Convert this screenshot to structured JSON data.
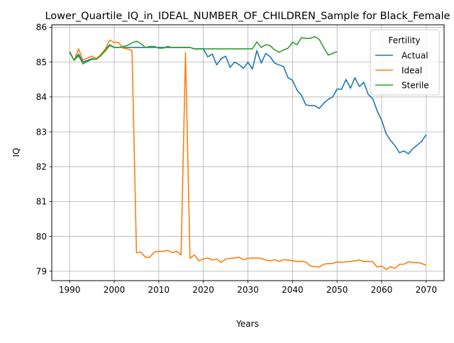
{
  "chart_data": {
    "type": "line",
    "title": "Lower_Quartile_IQ_in_IDEAL_NUMBER_OF_CHILDREN_Sample for Black_Female",
    "xlabel": "Years",
    "ylabel": "IQ",
    "xlim": [
      1986,
      2074
    ],
    "ylim": [
      78.73,
      86.07
    ],
    "xticks": [
      1990,
      2000,
      2010,
      2020,
      2030,
      2040,
      2050,
      2060,
      2070
    ],
    "yticks": [
      79,
      80,
      81,
      82,
      83,
      84,
      85,
      86
    ],
    "grid": true,
    "legend": {
      "title": "Fertility",
      "placement": "upper right"
    },
    "series": [
      {
        "name": "Actual",
        "color": "#1f77b4",
        "x": [
          1990,
          1991,
          1992,
          1993,
          1994,
          1995,
          1996,
          1997,
          1998,
          1999,
          2000,
          2001,
          2002,
          2003,
          2004,
          2005,
          2006,
          2007,
          2008,
          2009,
          2010,
          2011,
          2012,
          2013,
          2014,
          2015,
          2016,
          2017,
          2018,
          2019,
          2020,
          2021,
          2022,
          2023,
          2024,
          2025,
          2026,
          2027,
          2028,
          2029,
          2030,
          2031,
          2032,
          2033,
          2034,
          2035,
          2036,
          2037,
          2038,
          2039,
          2040,
          2041,
          2042,
          2043,
          2044,
          2045,
          2046,
          2047,
          2048,
          2049,
          2050,
          2051,
          2052,
          2053,
          2054,
          2055,
          2056,
          2057,
          2058,
          2059,
          2060,
          2061,
          2062,
          2063,
          2064,
          2065,
          2066,
          2067,
          2068,
          2069,
          2070
        ],
        "y": [
          85.28,
          85.06,
          85.23,
          85.0,
          85.05,
          85.1,
          85.08,
          85.2,
          85.35,
          85.5,
          85.42,
          85.42,
          85.42,
          85.42,
          85.42,
          85.42,
          85.42,
          85.42,
          85.42,
          85.42,
          85.42,
          85.42,
          85.42,
          85.42,
          85.42,
          85.42,
          85.42,
          85.42,
          85.38,
          85.38,
          85.38,
          85.15,
          85.23,
          84.92,
          85.1,
          85.17,
          84.85,
          85.0,
          84.93,
          84.82,
          85.0,
          84.8,
          85.33,
          84.97,
          85.25,
          85.15,
          84.97,
          84.92,
          84.87,
          84.55,
          84.48,
          84.2,
          84.05,
          83.77,
          83.75,
          83.75,
          83.67,
          83.82,
          83.93,
          84.0,
          84.23,
          84.22,
          84.5,
          84.25,
          84.55,
          84.3,
          84.42,
          84.07,
          83.95,
          83.6,
          83.33,
          82.95,
          82.75,
          82.6,
          82.4,
          82.45,
          82.37,
          82.52,
          82.62,
          82.73,
          82.92
        ]
      },
      {
        "name": "Ideal",
        "color": "#ff7f0e",
        "x": [
          1990,
          1991,
          1992,
          1993,
          1994,
          1995,
          1996,
          1997,
          1998,
          1999,
          2000,
          2001,
          2002,
          2003,
          2004,
          2005,
          2006,
          2007,
          2008,
          2009,
          2010,
          2011,
          2012,
          2013,
          2014,
          2015,
          2016,
          2017,
          2018,
          2019,
          2020,
          2021,
          2022,
          2023,
          2024,
          2025,
          2026,
          2027,
          2028,
          2029,
          2030,
          2031,
          2032,
          2033,
          2034,
          2035,
          2036,
          2037,
          2038,
          2039,
          2040,
          2041,
          2042,
          2043,
          2044,
          2045,
          2046,
          2047,
          2048,
          2049,
          2050,
          2051,
          2052,
          2053,
          2054,
          2055,
          2056,
          2057,
          2058,
          2059,
          2060,
          2061,
          2062,
          2063,
          2064,
          2065,
          2066,
          2067,
          2068,
          2069,
          2070
        ],
        "y": [
          85.3,
          85.05,
          85.38,
          85.05,
          85.12,
          85.17,
          85.1,
          85.22,
          85.38,
          85.63,
          85.56,
          85.56,
          85.4,
          85.38,
          85.33,
          79.53,
          79.55,
          79.4,
          79.4,
          79.55,
          79.57,
          79.57,
          79.6,
          79.53,
          79.57,
          79.47,
          85.27,
          79.37,
          79.47,
          79.3,
          79.35,
          79.38,
          79.32,
          79.35,
          79.25,
          79.35,
          79.37,
          79.38,
          79.4,
          79.33,
          79.37,
          79.38,
          79.38,
          79.37,
          79.32,
          79.3,
          79.33,
          79.28,
          79.33,
          79.32,
          79.3,
          79.28,
          79.28,
          79.27,
          79.15,
          79.13,
          79.12,
          79.2,
          79.22,
          79.22,
          79.27,
          79.25,
          79.27,
          79.28,
          79.3,
          79.32,
          79.28,
          79.28,
          79.27,
          79.12,
          79.15,
          79.05,
          79.13,
          79.08,
          79.2,
          79.2,
          79.27,
          79.25,
          79.25,
          79.22,
          79.17
        ]
      },
      {
        "name": "Sterile",
        "color": "#2ca02c",
        "x": [
          1990,
          1991,
          1992,
          1993,
          1994,
          1995,
          1996,
          1997,
          1998,
          1999,
          2000,
          2001,
          2002,
          2003,
          2004,
          2005,
          2006,
          2007,
          2008,
          2009,
          2010,
          2011,
          2012,
          2013,
          2014,
          2015,
          2016,
          2017,
          2018,
          2019,
          2020,
          2021,
          2022,
          2023,
          2024,
          2025,
          2026,
          2027,
          2028,
          2029,
          2030,
          2031,
          2032,
          2033,
          2034,
          2035,
          2036,
          2037,
          2038,
          2039,
          2040,
          2041,
          2042,
          2043,
          2044,
          2045,
          2046,
          2047,
          2048,
          2049,
          2050
        ],
        "y": [
          85.3,
          85.05,
          85.18,
          84.95,
          85.02,
          85.08,
          85.08,
          85.18,
          85.32,
          85.48,
          85.42,
          85.42,
          85.45,
          85.48,
          85.55,
          85.6,
          85.53,
          85.42,
          85.45,
          85.45,
          85.4,
          85.4,
          85.45,
          85.42,
          85.42,
          85.42,
          85.42,
          85.42,
          85.38,
          85.38,
          85.38,
          85.38,
          85.38,
          85.38,
          85.38,
          85.38,
          85.38,
          85.38,
          85.38,
          85.38,
          85.38,
          85.38,
          85.58,
          85.42,
          85.5,
          85.47,
          85.35,
          85.28,
          85.35,
          85.4,
          85.57,
          85.5,
          85.7,
          85.68,
          85.68,
          85.73,
          85.65,
          85.42,
          85.2,
          85.25,
          85.3
        ]
      }
    ]
  }
}
